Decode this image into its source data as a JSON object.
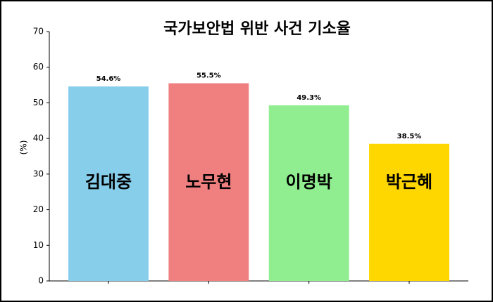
{
  "chart_data": {
    "type": "bar",
    "title": "국가보안법 위반 사건 기소율",
    "y_label": "(%)",
    "categories": [
      "김대중",
      "노무현",
      "이명박",
      "박근혜"
    ],
    "values": [
      54.6,
      55.5,
      49.3,
      38.5
    ],
    "value_labels": [
      "54.6%",
      "55.5%",
      "49.3%",
      "38.5%"
    ],
    "colors": [
      "#87ceeb",
      "#f08080",
      "#90ee90",
      "#ffd700"
    ],
    "ylim": [
      0,
      70
    ],
    "yticks": [
      0,
      10,
      20,
      30,
      40,
      50,
      60,
      70
    ],
    "grid": false
  }
}
